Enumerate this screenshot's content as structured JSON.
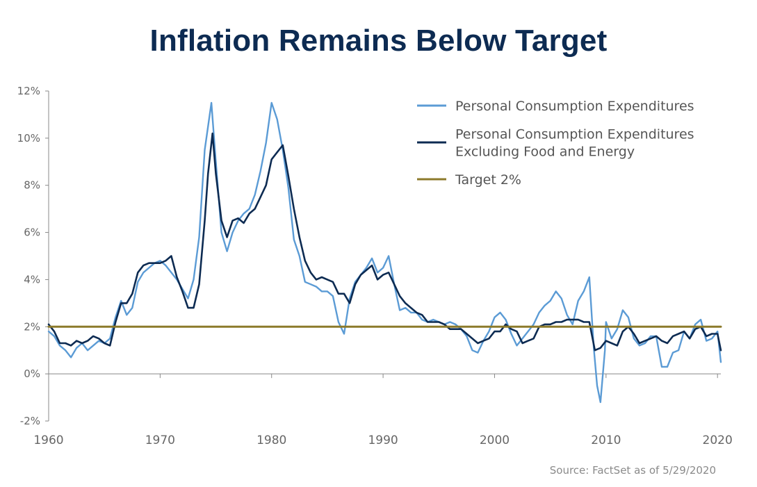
{
  "chart_data": {
    "type": "line",
    "title": "Inflation Remains Below Target",
    "source": "Source: FactSet as of 5/29/2020",
    "ylim": [
      -2,
      12
    ],
    "xlim": [
      1960,
      2020.3
    ],
    "y_ticks": [
      -2,
      0,
      2,
      4,
      6,
      8,
      10,
      12
    ],
    "y_tick_labels": [
      "-2%",
      "0%",
      "2%",
      "4%",
      "6%",
      "8%",
      "10%",
      "12%"
    ],
    "x_ticks": [
      1960,
      1970,
      1980,
      1990,
      2000,
      2010,
      2020
    ],
    "x_tick_labels": [
      "1960",
      "1970",
      "1980",
      "1990",
      "2000",
      "2010",
      "2020"
    ],
    "legend_position": "top-right",
    "colors": {
      "pce": "#5b9bd5",
      "core": "#0d2b52",
      "target": "#8c7a2b",
      "axis": "#888888"
    },
    "series": [
      {
        "name": "Personal Consumption Expenditures",
        "key": "pce",
        "points": [
          [
            1960,
            1.8
          ],
          [
            1960.5,
            1.6
          ],
          [
            1961,
            1.2
          ],
          [
            1961.5,
            1.0
          ],
          [
            1962,
            0.7
          ],
          [
            1962.5,
            1.1
          ],
          [
            1963,
            1.3
          ],
          [
            1963.5,
            1.0
          ],
          [
            1964,
            1.2
          ],
          [
            1964.5,
            1.4
          ],
          [
            1965,
            1.3
          ],
          [
            1965.5,
            1.5
          ],
          [
            1966,
            2.4
          ],
          [
            1966.5,
            3.1
          ],
          [
            1967,
            2.5
          ],
          [
            1967.5,
            2.8
          ],
          [
            1968,
            3.9
          ],
          [
            1968.5,
            4.3
          ],
          [
            1969,
            4.5
          ],
          [
            1969.5,
            4.7
          ],
          [
            1970,
            4.8
          ],
          [
            1970.5,
            4.6
          ],
          [
            1971,
            4.3
          ],
          [
            1971.5,
            4.0
          ],
          [
            1972,
            3.6
          ],
          [
            1972.5,
            3.2
          ],
          [
            1973,
            4.0
          ],
          [
            1973.5,
            5.8
          ],
          [
            1974,
            9.5
          ],
          [
            1974.3,
            10.5
          ],
          [
            1974.6,
            11.5
          ],
          [
            1975,
            9.0
          ],
          [
            1975.5,
            6.0
          ],
          [
            1976,
            5.2
          ],
          [
            1976.5,
            6.0
          ],
          [
            1977,
            6.5
          ],
          [
            1977.5,
            6.8
          ],
          [
            1978,
            7.0
          ],
          [
            1978.5,
            7.6
          ],
          [
            1979,
            8.6
          ],
          [
            1979.5,
            9.8
          ],
          [
            1980,
            11.5
          ],
          [
            1980.5,
            10.8
          ],
          [
            1981,
            9.5
          ],
          [
            1981.5,
            7.9
          ],
          [
            1982,
            5.7
          ],
          [
            1982.5,
            5.0
          ],
          [
            1983,
            3.9
          ],
          [
            1983.5,
            3.8
          ],
          [
            1984,
            3.7
          ],
          [
            1984.5,
            3.5
          ],
          [
            1985,
            3.5
          ],
          [
            1985.5,
            3.3
          ],
          [
            1986,
            2.2
          ],
          [
            1986.5,
            1.7
          ],
          [
            1987,
            3.2
          ],
          [
            1987.5,
            3.9
          ],
          [
            1988,
            4.2
          ],
          [
            1988.5,
            4.5
          ],
          [
            1989,
            4.9
          ],
          [
            1989.5,
            4.3
          ],
          [
            1990,
            4.5
          ],
          [
            1990.5,
            5.0
          ],
          [
            1991,
            3.8
          ],
          [
            1991.5,
            2.7
          ],
          [
            1992,
            2.8
          ],
          [
            1992.5,
            2.6
          ],
          [
            1993,
            2.6
          ],
          [
            1993.5,
            2.3
          ],
          [
            1994,
            2.2
          ],
          [
            1994.5,
            2.3
          ],
          [
            1995,
            2.2
          ],
          [
            1995.5,
            2.1
          ],
          [
            1996,
            2.2
          ],
          [
            1996.5,
            2.1
          ],
          [
            1997,
            1.9
          ],
          [
            1997.5,
            1.6
          ],
          [
            1998,
            1.0
          ],
          [
            1998.5,
            0.9
          ],
          [
            1999,
            1.4
          ],
          [
            1999.5,
            1.8
          ],
          [
            2000,
            2.4
          ],
          [
            2000.5,
            2.6
          ],
          [
            2001,
            2.3
          ],
          [
            2001.5,
            1.7
          ],
          [
            2002,
            1.2
          ],
          [
            2002.5,
            1.5
          ],
          [
            2003,
            1.8
          ],
          [
            2003.5,
            2.1
          ],
          [
            2004,
            2.6
          ],
          [
            2004.5,
            2.9
          ],
          [
            2005,
            3.1
          ],
          [
            2005.5,
            3.5
          ],
          [
            2006,
            3.2
          ],
          [
            2006.5,
            2.5
          ],
          [
            2007,
            2.1
          ],
          [
            2007.5,
            3.1
          ],
          [
            2008,
            3.5
          ],
          [
            2008.5,
            4.1
          ],
          [
            2008.9,
            1.1
          ],
          [
            2009.2,
            -0.5
          ],
          [
            2009.5,
            -1.2
          ],
          [
            2009.9,
            1.0
          ],
          [
            2010,
            2.2
          ],
          [
            2010.5,
            1.5
          ],
          [
            2011,
            1.9
          ],
          [
            2011.5,
            2.7
          ],
          [
            2012,
            2.4
          ],
          [
            2012.5,
            1.5
          ],
          [
            2013,
            1.2
          ],
          [
            2013.5,
            1.3
          ],
          [
            2014,
            1.6
          ],
          [
            2014.5,
            1.6
          ],
          [
            2015,
            0.3
          ],
          [
            2015.5,
            0.3
          ],
          [
            2016,
            0.9
          ],
          [
            2016.5,
            1.0
          ],
          [
            2017,
            1.8
          ],
          [
            2017.5,
            1.5
          ],
          [
            2018,
            2.1
          ],
          [
            2018.5,
            2.3
          ],
          [
            2019,
            1.4
          ],
          [
            2019.5,
            1.5
          ],
          [
            2020,
            1.8
          ],
          [
            2020.3,
            0.5
          ]
        ]
      },
      {
        "name": "Personal Consumption Expenditures Excluding Food and Energy",
        "key": "core",
        "points": [
          [
            1960,
            2.1
          ],
          [
            1960.5,
            1.8
          ],
          [
            1961,
            1.3
          ],
          [
            1961.5,
            1.3
          ],
          [
            1962,
            1.2
          ],
          [
            1962.5,
            1.4
          ],
          [
            1963,
            1.3
          ],
          [
            1963.5,
            1.4
          ],
          [
            1964,
            1.6
          ],
          [
            1964.5,
            1.5
          ],
          [
            1965,
            1.3
          ],
          [
            1965.5,
            1.2
          ],
          [
            1966,
            2.2
          ],
          [
            1966.5,
            3.0
          ],
          [
            1967,
            3.0
          ],
          [
            1967.5,
            3.4
          ],
          [
            1968,
            4.3
          ],
          [
            1968.5,
            4.6
          ],
          [
            1969,
            4.7
          ],
          [
            1969.5,
            4.7
          ],
          [
            1970,
            4.7
          ],
          [
            1970.5,
            4.8
          ],
          [
            1971,
            5.0
          ],
          [
            1971.5,
            4.1
          ],
          [
            1972,
            3.5
          ],
          [
            1972.5,
            2.8
          ],
          [
            1973,
            2.8
          ],
          [
            1973.5,
            3.8
          ],
          [
            1974,
            6.5
          ],
          [
            1974.3,
            8.5
          ],
          [
            1974.7,
            10.2
          ],
          [
            1975,
            8.5
          ],
          [
            1975.5,
            6.5
          ],
          [
            1976,
            5.8
          ],
          [
            1976.5,
            6.5
          ],
          [
            1977,
            6.6
          ],
          [
            1977.5,
            6.4
          ],
          [
            1978,
            6.8
          ],
          [
            1978.5,
            7.0
          ],
          [
            1979,
            7.5
          ],
          [
            1979.5,
            8.0
          ],
          [
            1980,
            9.1
          ],
          [
            1980.5,
            9.4
          ],
          [
            1981,
            9.7
          ],
          [
            1981.5,
            8.4
          ],
          [
            1982,
            7.0
          ],
          [
            1982.5,
            5.8
          ],
          [
            1983,
            4.8
          ],
          [
            1983.5,
            4.3
          ],
          [
            1984,
            4.0
          ],
          [
            1984.5,
            4.1
          ],
          [
            1985,
            4.0
          ],
          [
            1985.5,
            3.9
          ],
          [
            1986,
            3.4
          ],
          [
            1986.5,
            3.4
          ],
          [
            1987,
            3.0
          ],
          [
            1987.5,
            3.8
          ],
          [
            1988,
            4.2
          ],
          [
            1988.5,
            4.4
          ],
          [
            1989,
            4.6
          ],
          [
            1989.5,
            4.0
          ],
          [
            1990,
            4.2
          ],
          [
            1990.5,
            4.3
          ],
          [
            1991,
            3.8
          ],
          [
            1991.5,
            3.3
          ],
          [
            1992,
            3.0
          ],
          [
            1992.5,
            2.8
          ],
          [
            1993,
            2.6
          ],
          [
            1993.5,
            2.5
          ],
          [
            1994,
            2.2
          ],
          [
            1994.5,
            2.2
          ],
          [
            1995,
            2.2
          ],
          [
            1995.5,
            2.1
          ],
          [
            1996,
            1.9
          ],
          [
            1996.5,
            1.9
          ],
          [
            1997,
            1.9
          ],
          [
            1997.5,
            1.7
          ],
          [
            1998,
            1.5
          ],
          [
            1998.5,
            1.3
          ],
          [
            1999,
            1.4
          ],
          [
            1999.5,
            1.5
          ],
          [
            2000,
            1.8
          ],
          [
            2000.5,
            1.8
          ],
          [
            2001,
            2.1
          ],
          [
            2001.5,
            1.9
          ],
          [
            2002,
            1.8
          ],
          [
            2002.5,
            1.3
          ],
          [
            2003,
            1.4
          ],
          [
            2003.5,
            1.5
          ],
          [
            2004,
            2.0
          ],
          [
            2004.5,
            2.1
          ],
          [
            2005,
            2.1
          ],
          [
            2005.5,
            2.2
          ],
          [
            2006,
            2.2
          ],
          [
            2006.5,
            2.3
          ],
          [
            2007,
            2.3
          ],
          [
            2007.5,
            2.3
          ],
          [
            2008,
            2.2
          ],
          [
            2008.5,
            2.2
          ],
          [
            2009,
            1.0
          ],
          [
            2009.5,
            1.1
          ],
          [
            2010,
            1.4
          ],
          [
            2010.5,
            1.3
          ],
          [
            2011,
            1.2
          ],
          [
            2011.5,
            1.8
          ],
          [
            2012,
            2.0
          ],
          [
            2012.5,
            1.7
          ],
          [
            2013,
            1.3
          ],
          [
            2013.5,
            1.4
          ],
          [
            2014,
            1.5
          ],
          [
            2014.5,
            1.6
          ],
          [
            2015,
            1.4
          ],
          [
            2015.5,
            1.3
          ],
          [
            2016,
            1.6
          ],
          [
            2016.5,
            1.7
          ],
          [
            2017,
            1.8
          ],
          [
            2017.5,
            1.5
          ],
          [
            2018,
            1.9
          ],
          [
            2018.5,
            2.0
          ],
          [
            2019,
            1.6
          ],
          [
            2019.5,
            1.7
          ],
          [
            2020,
            1.7
          ],
          [
            2020.3,
            1.0
          ]
        ]
      },
      {
        "name": "Target 2%",
        "key": "target",
        "points": [
          [
            1960,
            2.0
          ],
          [
            2020.3,
            2.0
          ]
        ]
      }
    ],
    "legend": [
      {
        "key": "pce",
        "lines": [
          "Personal Consumption Expenditures"
        ]
      },
      {
        "key": "core",
        "lines": [
          "Personal Consumption Expenditures",
          "Excluding Food and Energy"
        ]
      },
      {
        "key": "target",
        "lines": [
          "Target 2%"
        ]
      }
    ]
  }
}
